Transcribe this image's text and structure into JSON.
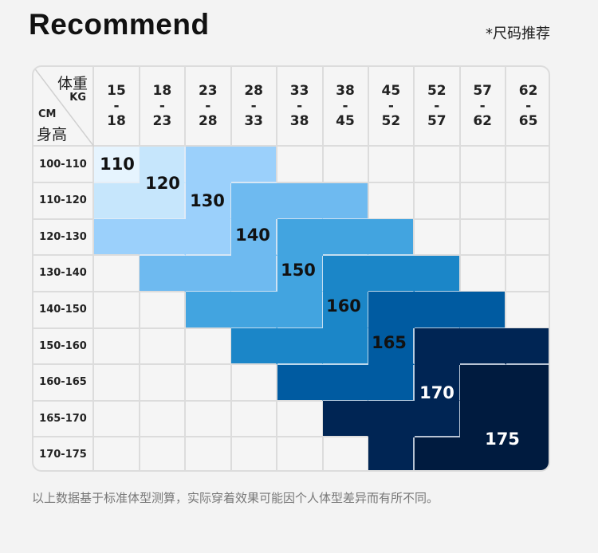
{
  "title": "Recommend",
  "note": "*尺码推荐",
  "corner": {
    "weight": "体重",
    "weight_unit": "KG",
    "height_unit": "CM",
    "height": "身高"
  },
  "weight_columns": [
    {
      "from": "15",
      "sep": "-",
      "to": "18"
    },
    {
      "from": "18",
      "sep": "-",
      "to": "23"
    },
    {
      "from": "23",
      "sep": "-",
      "to": "28"
    },
    {
      "from": "28",
      "sep": "-",
      "to": "33"
    },
    {
      "from": "33",
      "sep": "-",
      "to": "38"
    },
    {
      "from": "38",
      "sep": "-",
      "to": "45"
    },
    {
      "from": "45",
      "sep": "-",
      "to": "52"
    },
    {
      "from": "52",
      "sep": "-",
      "to": "57"
    },
    {
      "from": "57",
      "sep": "-",
      "to": "62"
    },
    {
      "from": "62",
      "sep": "-",
      "to": "65"
    }
  ],
  "height_rows": [
    "100-110",
    "110-120",
    "120-130",
    "130-140",
    "140-150",
    "150-160",
    "160-165",
    "165-170",
    "170-175"
  ],
  "size_grid": [
    [
      "110",
      "120",
      "130",
      "130",
      "",
      "",
      "",
      "",
      "",
      ""
    ],
    [
      "120",
      "120",
      "130",
      "140",
      "140",
      "140",
      "",
      "",
      "",
      ""
    ],
    [
      "130",
      "130",
      "130",
      "140",
      "150",
      "150",
      "150",
      "",
      "",
      ""
    ],
    [
      "",
      "140",
      "140",
      "140",
      "150",
      "160",
      "160",
      "160",
      "",
      ""
    ],
    [
      "",
      "",
      "150",
      "150",
      "150",
      "160",
      "165",
      "165",
      "165",
      ""
    ],
    [
      "",
      "",
      "",
      "160",
      "160",
      "160",
      "165",
      "170",
      "170",
      "170"
    ],
    [
      "",
      "",
      "",
      "",
      "165",
      "165",
      "165",
      "170",
      "175",
      "175"
    ],
    [
      "",
      "",
      "",
      "",
      "",
      "170",
      "170",
      "170",
      "175",
      "175"
    ],
    [
      "",
      "",
      "",
      "",
      "",
      "",
      "170",
      "175",
      "175",
      "175"
    ]
  ],
  "sizes": [
    "110",
    "120",
    "130",
    "140",
    "150",
    "160",
    "165",
    "170",
    "175"
  ],
  "size_colors": {
    "110": "#e6f4fe",
    "120": "#c6e6fc",
    "130": "#9bd0fb",
    "140": "#6ebaf0",
    "150": "#42a4e0",
    "160": "#1b86c8",
    "165": "#005ba1",
    "170": "#002554",
    "175": "#001b3f"
  },
  "size_text_colors": {
    "110": "#111111",
    "120": "#111111",
    "130": "#111111",
    "140": "#111111",
    "150": "#111111",
    "160": "#111111",
    "165": "#111111",
    "170": "#ffffff",
    "175": "#ffffff"
  },
  "footer": "以上数据基于标准体型测算，实际穿着效果可能因个人体型差异而有所不同。"
}
